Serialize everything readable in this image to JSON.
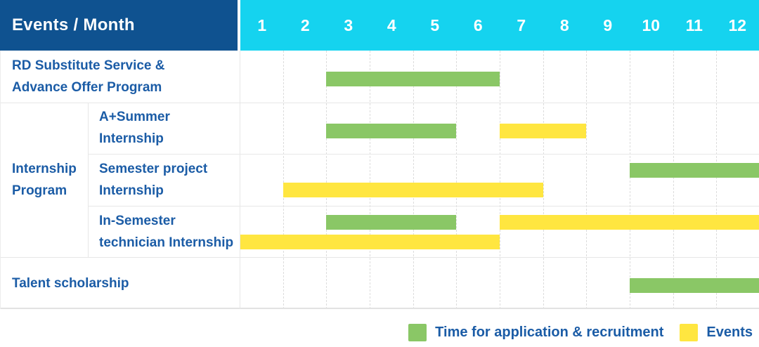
{
  "title": "Events / Month",
  "months": [
    "1",
    "2",
    "3",
    "4",
    "5",
    "6",
    "7",
    "8",
    "9",
    "10",
    "11",
    "12"
  ],
  "colors": {
    "header_left_bg": "#0F5290",
    "header_months_bg": "#15D3EF",
    "header_text": "#FFFFFF",
    "label_text": "#1B5CA6",
    "application_green": "#8AC766",
    "events_yellow": "#FFE640",
    "grid_line": "#E7E7E7"
  },
  "group": {
    "label": "Internship Program",
    "label_lines": [
      "Internship",
      "Program"
    ],
    "row_start": 2,
    "row_end": 4
  },
  "legend": [
    {
      "swatch": "application_green",
      "label": "Time for application & recruitment"
    },
    {
      "swatch": "events_yellow",
      "label": "Events"
    }
  ],
  "chart_data": {
    "type": "gantt",
    "title": "Events / Month",
    "x": {
      "unit": "month",
      "ticks": [
        1,
        2,
        3,
        4,
        5,
        6,
        7,
        8,
        9,
        10,
        11,
        12
      ],
      "range": [
        1,
        12
      ]
    },
    "grid": true,
    "legend_position": "bottom-right",
    "series_legend": [
      {
        "name": "Time for application & recruitment",
        "color": "#8AC766"
      },
      {
        "name": "Events",
        "color": "#FFE640"
      }
    ],
    "rows": [
      {
        "label": "RD Substitute Service & Advance Offer Program",
        "label_lines": [
          "RD Substitute Service &",
          "Advance Offer Program"
        ],
        "group": null,
        "lanes": 1,
        "bars": [
          {
            "series": "Time for application & recruitment",
            "color_key": "application_green",
            "start_month": 3,
            "end_month": 6,
            "lane": 0
          }
        ]
      },
      {
        "label": "A+Summer Internship",
        "label_lines": [
          "A+Summer",
          "Internship"
        ],
        "group": "Internship Program",
        "lanes": 1,
        "bars": [
          {
            "series": "Time for application & recruitment",
            "color_key": "application_green",
            "start_month": 3,
            "end_month": 5,
            "lane": 0
          },
          {
            "series": "Events",
            "color_key": "events_yellow",
            "start_month": 7,
            "end_month": 8,
            "lane": 0
          }
        ]
      },
      {
        "label": "Semester project Internship",
        "label_lines": [
          "Semester project",
          "Internship"
        ],
        "group": "Internship Program",
        "lanes": 2,
        "bars": [
          {
            "series": "Time for application & recruitment",
            "color_key": "application_green",
            "start_month": 10,
            "end_month": 12,
            "lane": 0
          },
          {
            "series": "Events",
            "color_key": "events_yellow",
            "start_month": 2,
            "end_month": 7,
            "lane": 1
          }
        ]
      },
      {
        "label": "In-Semester technician Internship",
        "label_lines": [
          "In-Semester",
          "technician Internship"
        ],
        "group": "Internship Program",
        "lanes": 2,
        "bars": [
          {
            "series": "Time for application & recruitment",
            "color_key": "application_green",
            "start_month": 3,
            "end_month": 5,
            "lane": 0
          },
          {
            "series": "Events",
            "color_key": "events_yellow",
            "start_month": 7,
            "end_month": 12,
            "lane": 0
          },
          {
            "series": "Events",
            "color_key": "events_yellow",
            "start_month": 1,
            "end_month": 6,
            "lane": 1
          }
        ]
      },
      {
        "label": "Talent scholarship",
        "label_lines": [
          "Talent scholarship"
        ],
        "group": null,
        "lanes": 1,
        "bars": [
          {
            "series": "Time for application & recruitment",
            "color_key": "application_green",
            "start_month": 10,
            "end_month": 12,
            "lane": 0
          }
        ]
      }
    ]
  }
}
